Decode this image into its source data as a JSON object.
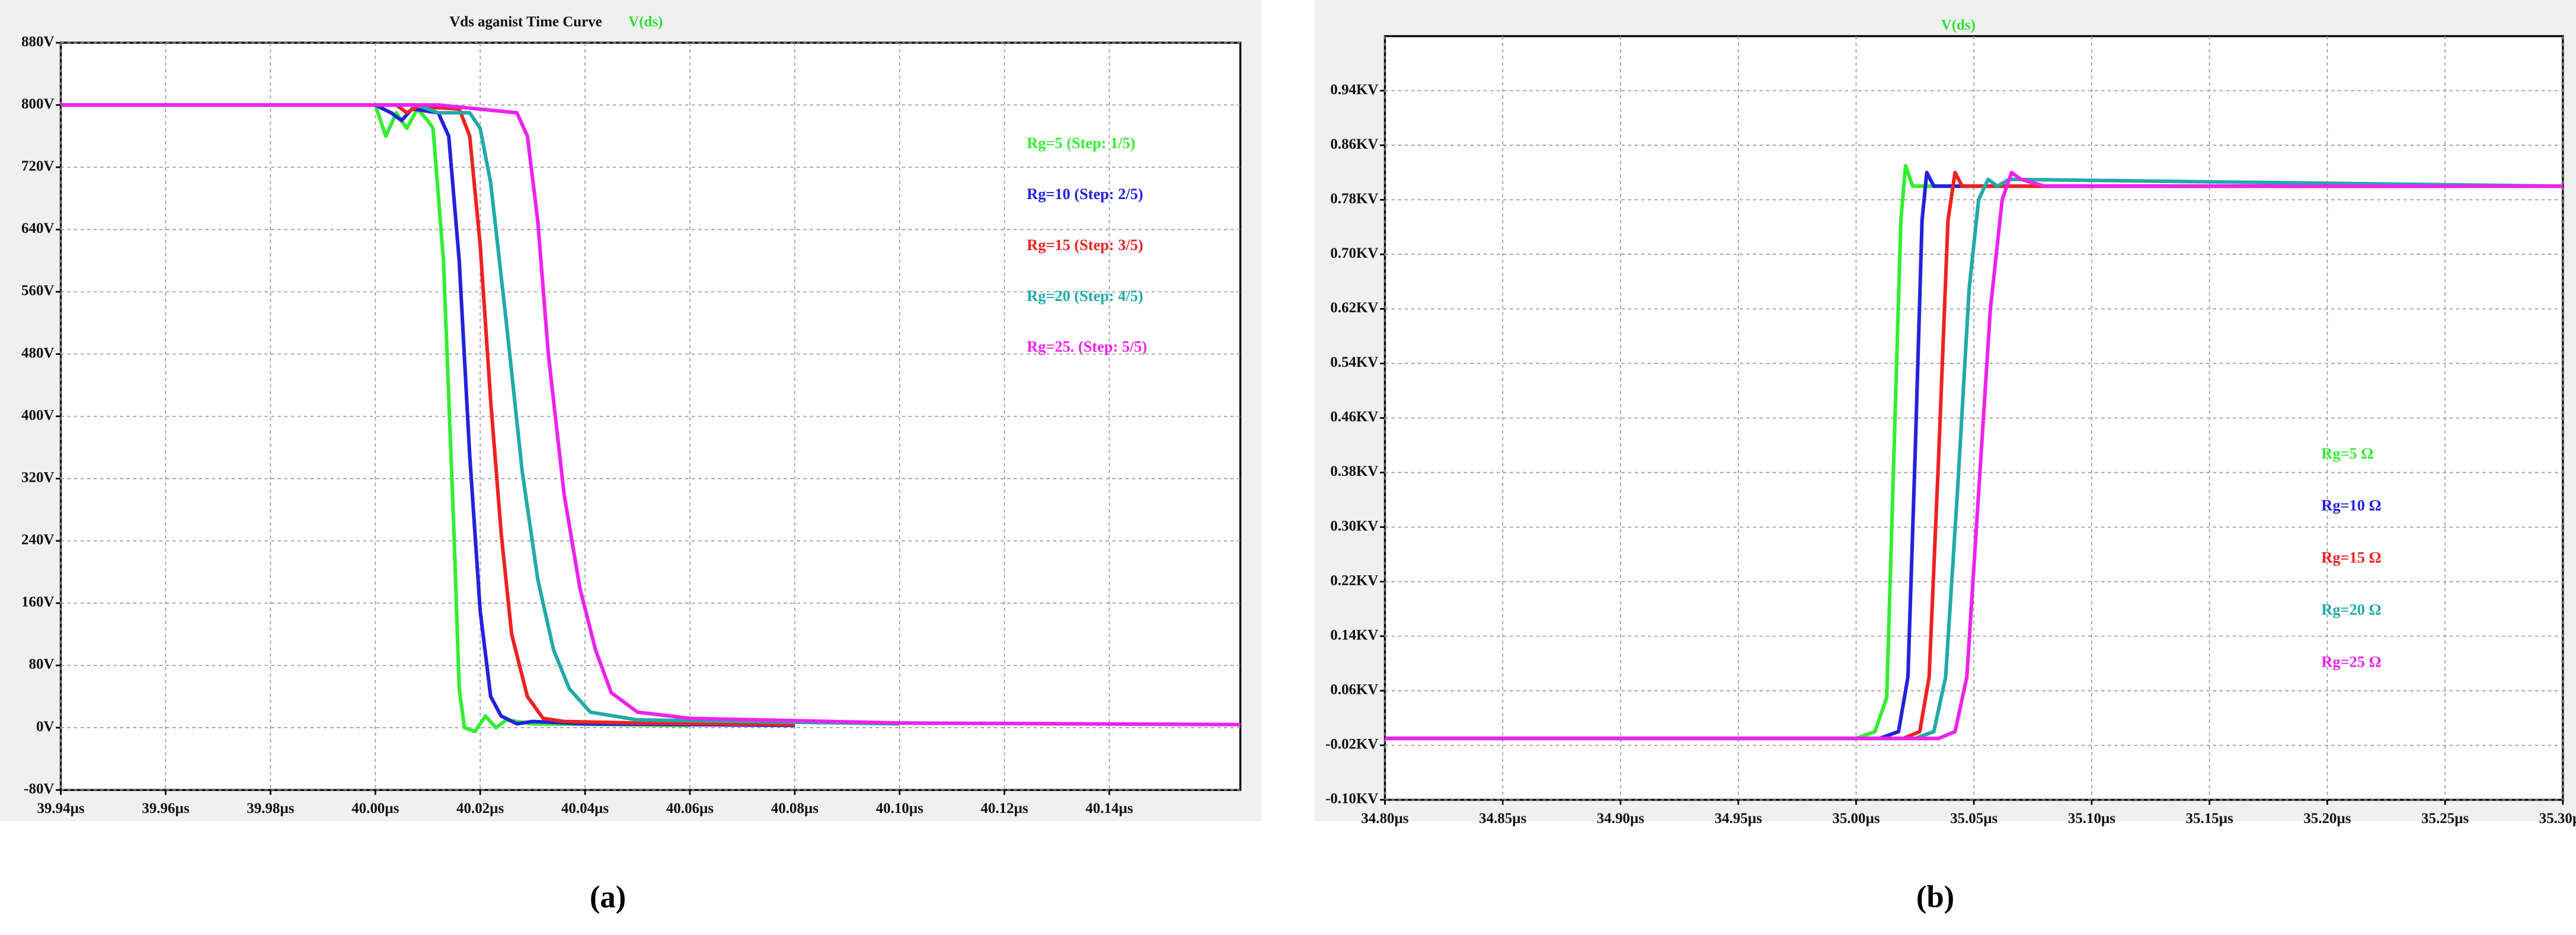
{
  "chart_data": [
    {
      "type": "line",
      "title": "Vds aganist Time Curve",
      "trace_label": "V(ds)",
      "caption": "(a)",
      "grid": true,
      "xlim": [
        39.94,
        40.165
      ],
      "ylim": [
        -80,
        880
      ],
      "xticks": [
        {
          "value": 39.94,
          "label": "39.94µs"
        },
        {
          "value": 39.96,
          "label": "39.96µs"
        },
        {
          "value": 39.98,
          "label": "39.98µs"
        },
        {
          "value": 40.0,
          "label": "40.00µs"
        },
        {
          "value": 40.02,
          "label": "40.02µs"
        },
        {
          "value": 40.04,
          "label": "40.04µs"
        },
        {
          "value": 40.06,
          "label": "40.06µs"
        },
        {
          "value": 40.08,
          "label": "40.08µs"
        },
        {
          "value": 40.1,
          "label": "40.10µs"
        },
        {
          "value": 40.12,
          "label": "40.12µs"
        },
        {
          "value": 40.14,
          "label": "40.14µs"
        }
      ],
      "yticks": [
        {
          "value": 880,
          "label": "880V"
        },
        {
          "value": 800,
          "label": "800V"
        },
        {
          "value": 720,
          "label": "720V"
        },
        {
          "value": 640,
          "label": "640V"
        },
        {
          "value": 560,
          "label": "560V"
        },
        {
          "value": 480,
          "label": "480V"
        },
        {
          "value": 400,
          "label": "400V"
        },
        {
          "value": 320,
          "label": "320V"
        },
        {
          "value": 240,
          "label": "240V"
        },
        {
          "value": 160,
          "label": "160V"
        },
        {
          "value": 80,
          "label": "80V"
        },
        {
          "value": 0,
          "label": "0V"
        },
        {
          "value": -80,
          "label": "-80V"
        }
      ],
      "series": [
        {
          "name": "Rg=5 (Step: 1/5)",
          "color": "#33ee33",
          "x": [
            39.94,
            40.0,
            40.002,
            40.004,
            40.006,
            40.008,
            40.01,
            40.011,
            40.013,
            40.015,
            40.016,
            40.017,
            40.019,
            40.021,
            40.023,
            40.025,
            40.03,
            40.06
          ],
          "values": [
            800,
            800,
            760,
            790,
            770,
            795,
            780,
            770,
            600,
            250,
            50,
            0,
            -5,
            15,
            0,
            10,
            5,
            3
          ]
        },
        {
          "name": "Rg=10 (Step: 2/5)",
          "color": "#2222dd",
          "x": [
            39.94,
            40.0,
            40.003,
            40.005,
            40.007,
            40.012,
            40.014,
            40.016,
            40.018,
            40.02,
            40.022,
            40.024,
            40.027,
            40.03,
            40.04,
            40.08
          ],
          "values": [
            800,
            800,
            790,
            780,
            795,
            790,
            760,
            600,
            350,
            150,
            40,
            15,
            5,
            8,
            5,
            3
          ]
        },
        {
          "name": "Rg=15 (Step: 3/5)",
          "color": "#ee2222",
          "x": [
            39.94,
            40.004,
            40.006,
            40.008,
            40.016,
            40.018,
            40.02,
            40.022,
            40.024,
            40.026,
            40.029,
            40.032,
            40.036,
            40.05,
            40.08
          ],
          "values": [
            800,
            800,
            790,
            798,
            795,
            760,
            620,
            420,
            250,
            120,
            40,
            12,
            8,
            6,
            4
          ]
        },
        {
          "name": "Rg=20 (Step: 4/5)",
          "color": "#22aaaa",
          "x": [
            39.94,
            40.008,
            40.012,
            40.018,
            40.02,
            40.022,
            40.025,
            40.028,
            40.031,
            40.034,
            40.037,
            40.041,
            40.05,
            40.1
          ],
          "values": [
            800,
            800,
            790,
            790,
            770,
            700,
            520,
            330,
            190,
            100,
            50,
            20,
            10,
            5
          ]
        },
        {
          "name": "Rg=25. (Step: 5/5)",
          "color": "#ee22ee",
          "x": [
            39.94,
            40.012,
            40.027,
            40.029,
            40.031,
            40.033,
            40.036,
            40.039,
            40.042,
            40.045,
            40.05,
            40.06,
            40.1,
            40.165
          ],
          "values": [
            800,
            800,
            790,
            760,
            650,
            480,
            300,
            180,
            100,
            45,
            20,
            12,
            6,
            4
          ]
        }
      ]
    },
    {
      "type": "line",
      "trace_label": "V(ds)",
      "caption": "(b)",
      "grid": true,
      "xlim": [
        34.8,
        35.3
      ],
      "ylim": [
        -0.1,
        1.02
      ],
      "xticks": [
        {
          "value": 34.8,
          "label": "34.80µs"
        },
        {
          "value": 34.85,
          "label": "34.85µs"
        },
        {
          "value": 34.9,
          "label": "34.90µs"
        },
        {
          "value": 34.95,
          "label": "34.95µs"
        },
        {
          "value": 35.0,
          "label": "35.00µs"
        },
        {
          "value": 35.05,
          "label": "35.05µs"
        },
        {
          "value": 35.1,
          "label": "35.10µs"
        },
        {
          "value": 35.15,
          "label": "35.15µs"
        },
        {
          "value": 35.2,
          "label": "35.20µs"
        },
        {
          "value": 35.25,
          "label": "35.25µs"
        },
        {
          "value": 35.3,
          "label": "35.30µs"
        }
      ],
      "yticks": [
        {
          "value": 0.94,
          "label": "0.94KV"
        },
        {
          "value": 0.86,
          "label": "0.86KV"
        },
        {
          "value": 0.78,
          "label": "0.78KV"
        },
        {
          "value": 0.7,
          "label": "0.70KV"
        },
        {
          "value": 0.62,
          "label": "0.62KV"
        },
        {
          "value": 0.54,
          "label": "0.54KV"
        },
        {
          "value": 0.46,
          "label": "0.46KV"
        },
        {
          "value": 0.38,
          "label": "0.38KV"
        },
        {
          "value": 0.3,
          "label": "0.30KV"
        },
        {
          "value": 0.22,
          "label": "0.22KV"
        },
        {
          "value": 0.14,
          "label": "0.14KV"
        },
        {
          "value": 0.06,
          "label": "0.06KV"
        },
        {
          "value": -0.02,
          "label": "-0.02KV"
        },
        {
          "value": -0.1,
          "label": "-0.10KV"
        }
      ],
      "series": [
        {
          "name": "Rg=5 Ω",
          "color": "#33ee33",
          "x": [
            34.8,
            35.0,
            35.008,
            35.013,
            35.016,
            35.019,
            35.021,
            35.024,
            35.03,
            35.3
          ],
          "values": [
            -0.01,
            -0.01,
            0.0,
            0.05,
            0.4,
            0.75,
            0.83,
            0.8,
            0.8,
            0.8
          ]
        },
        {
          "name": "Rg=10 Ω",
          "color": "#2222dd",
          "x": [
            34.8,
            35.01,
            35.018,
            35.022,
            35.025,
            35.028,
            35.03,
            35.033,
            35.04,
            35.3
          ],
          "values": [
            -0.01,
            -0.01,
            0.0,
            0.08,
            0.4,
            0.75,
            0.82,
            0.8,
            0.8,
            0.8
          ]
        },
        {
          "name": "Rg=15 Ω",
          "color": "#ee2222",
          "x": [
            34.8,
            35.02,
            35.027,
            35.031,
            35.035,
            35.039,
            35.042,
            35.045,
            35.05,
            35.3
          ],
          "values": [
            -0.01,
            -0.01,
            0.0,
            0.08,
            0.4,
            0.75,
            0.82,
            0.8,
            0.8,
            0.8
          ]
        },
        {
          "name": "Rg=20 Ω",
          "color": "#22aaaa",
          "x": [
            34.8,
            35.025,
            35.033,
            35.038,
            35.043,
            35.048,
            35.052,
            35.056,
            35.06,
            35.065,
            35.3
          ],
          "values": [
            -0.01,
            -0.01,
            0.0,
            0.08,
            0.35,
            0.65,
            0.78,
            0.81,
            0.8,
            0.81,
            0.8
          ]
        },
        {
          "name": "Rg=25 Ω",
          "color": "#ee22ee",
          "x": [
            34.8,
            35.035,
            35.042,
            35.047,
            35.052,
            35.057,
            35.062,
            35.066,
            35.07,
            35.08,
            35.3
          ],
          "values": [
            -0.01,
            -0.01,
            0.0,
            0.08,
            0.35,
            0.62,
            0.78,
            0.82,
            0.81,
            0.8,
            0.8
          ]
        }
      ]
    }
  ]
}
